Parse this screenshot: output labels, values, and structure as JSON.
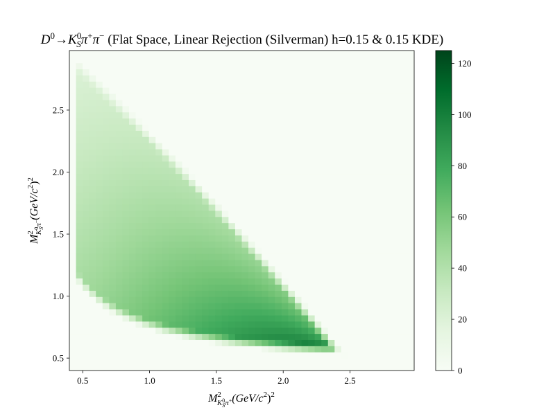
{
  "chart_data": {
    "type": "heatmap",
    "title": {
      "lead_italic": "D",
      "lead_sup": "0",
      "arrow": "→",
      "k_italic": "K",
      "k_sub": "S",
      "k_sup": "0",
      "pi1_italic": "π",
      "pi1_sup": "+",
      "pi2_italic": "π",
      "pi2_sup": "−",
      "rest": " (Flat Space, Linear Rejection (Silverman) h=0.15 & 0.15 KDE)"
    },
    "xlabel": {
      "m": "M",
      "m_sup": "2",
      "sub_k": "K",
      "sub_k_sub": "S",
      "sub_k_sup": "0",
      "sub_pi": "π",
      "sub_pi_sup": "+",
      "units": "(GeV/c",
      "units_sup": "2",
      "units_close": ")",
      "units_close_sup": "2"
    },
    "ylabel": {
      "m": "M",
      "m_sup": "2",
      "sub_k": "K",
      "sub_k_sub": "S",
      "sub_k_sup": "0",
      "sub_pi": "π",
      "sub_pi_sup": "−",
      "units": "(GeV/c",
      "units_sup": "2",
      "units_close": ")",
      "units_close_sup": "2"
    },
    "xlim": [
      0.4,
      2.98
    ],
    "ylim": [
      0.4,
      2.98
    ],
    "xticks": [
      "0.5",
      "1.0",
      "1.5",
      "2.0",
      "2.5"
    ],
    "yticks": [
      "0.5",
      "1.0",
      "1.5",
      "2.0",
      "2.5"
    ],
    "xtick_values": [
      0.5,
      1.0,
      1.5,
      2.0,
      2.5
    ],
    "ytick_values": [
      0.5,
      1.0,
      1.5,
      2.0,
      2.5
    ],
    "colorbar": {
      "min": 0,
      "max": 125,
      "ticks": [
        "0",
        "20",
        "40",
        "60",
        "80",
        "100",
        "120"
      ],
      "tick_values": [
        0,
        20,
        40,
        60,
        80,
        100,
        120
      ]
    },
    "colormap": "Greens",
    "colors": {
      "low": "#f7fcf5",
      "mid": "#74c476",
      "high": "#00441b"
    },
    "bins": 52,
    "grid": false
  }
}
